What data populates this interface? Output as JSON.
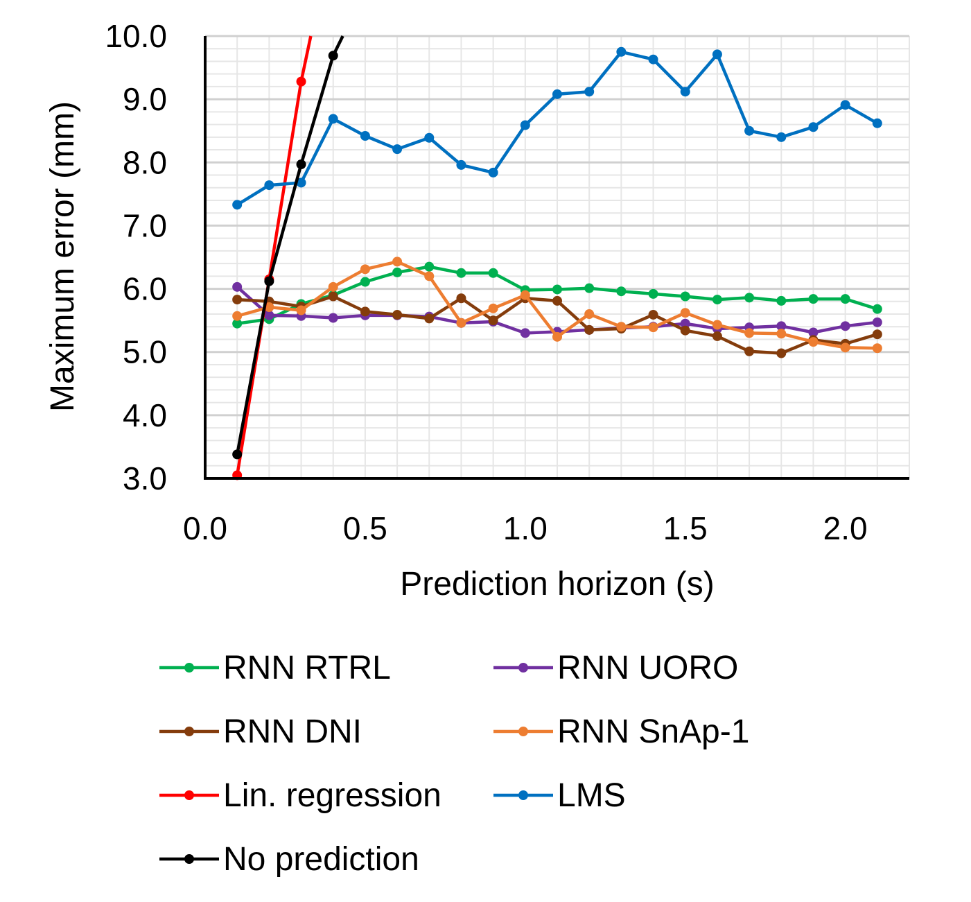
{
  "chart_data": {
    "type": "line",
    "title": "",
    "xlabel": "Prediction horizon (s)",
    "ylabel": "Maximum error (mm)",
    "xlim": [
      0.0,
      2.2
    ],
    "ylim": [
      3.0,
      10.0
    ],
    "xticks": [
      "0.0",
      "0.5",
      "1.0",
      "1.5",
      "2.0"
    ],
    "xtick_values": [
      0.0,
      0.5,
      1.0,
      1.5,
      2.0
    ],
    "yticks": [
      "3.0",
      "4.0",
      "5.0",
      "6.0",
      "7.0",
      "8.0",
      "9.0",
      "10.0"
    ],
    "ytick_values": [
      3,
      4,
      5,
      6,
      7,
      8,
      9,
      10
    ],
    "grid": true,
    "legend_position": "bottom",
    "series": [
      {
        "name": "RNN RTRL",
        "color": "#00b050",
        "x": [
          0.1,
          0.2,
          0.3,
          0.4,
          0.5,
          0.6,
          0.7,
          0.8,
          0.9,
          1.0,
          1.1,
          1.2,
          1.3,
          1.4,
          1.5,
          1.6,
          1.7,
          1.8,
          1.9,
          2.0,
          2.1
        ],
        "values": [
          5.45,
          5.52,
          5.76,
          5.9,
          6.11,
          6.26,
          6.35,
          6.25,
          6.25,
          5.98,
          5.99,
          6.01,
          5.96,
          5.92,
          5.88,
          5.83,
          5.86,
          5.81,
          5.84,
          5.84,
          5.68
        ]
      },
      {
        "name": "RNN UORO",
        "color": "#7030a0",
        "x": [
          0.1,
          0.2,
          0.3,
          0.4,
          0.5,
          0.6,
          0.7,
          0.8,
          0.9,
          1.0,
          1.1,
          1.2,
          1.3,
          1.4,
          1.5,
          1.6,
          1.7,
          1.8,
          1.9,
          2.0,
          2.1
        ],
        "values": [
          6.03,
          5.58,
          5.57,
          5.54,
          5.58,
          5.58,
          5.56,
          5.46,
          5.48,
          5.3,
          5.32,
          5.35,
          5.38,
          5.4,
          5.45,
          5.37,
          5.39,
          5.41,
          5.31,
          5.41,
          5.47
        ]
      },
      {
        "name": "RNN DNI",
        "color": "#843c0c",
        "x": [
          0.1,
          0.2,
          0.3,
          0.4,
          0.5,
          0.6,
          0.7,
          0.8,
          0.9,
          1.0,
          1.1,
          1.2,
          1.3,
          1.4,
          1.5,
          1.6,
          1.7,
          1.8,
          1.9,
          2.0,
          2.1
        ],
        "values": [
          5.83,
          5.8,
          5.72,
          5.88,
          5.64,
          5.59,
          5.53,
          5.85,
          5.5,
          5.85,
          5.81,
          5.35,
          5.37,
          5.59,
          5.34,
          5.25,
          5.01,
          4.98,
          5.19,
          5.13,
          5.28
        ]
      },
      {
        "name": "RNN SnAp-1",
        "color": "#ed7d31",
        "x": [
          0.1,
          0.2,
          0.3,
          0.4,
          0.5,
          0.6,
          0.7,
          0.8,
          0.9,
          1.0,
          1.1,
          1.2,
          1.3,
          1.4,
          1.5,
          1.6,
          1.7,
          1.8,
          1.9,
          2.0,
          2.1
        ],
        "values": [
          5.57,
          5.71,
          5.66,
          6.03,
          6.31,
          6.43,
          6.2,
          5.46,
          5.69,
          5.9,
          5.24,
          5.6,
          5.4,
          5.39,
          5.62,
          5.43,
          5.3,
          5.29,
          5.16,
          5.07,
          5.06
        ]
      },
      {
        "name": "Lin. regression",
        "color": "#ff0000",
        "x": [
          0.1,
          0.2,
          0.3,
          0.33
        ],
        "values": [
          3.05,
          6.15,
          9.28,
          10.0
        ]
      },
      {
        "name": "LMS",
        "color": "#0070c0",
        "x": [
          0.1,
          0.2,
          0.3,
          0.4,
          0.5,
          0.6,
          0.7,
          0.8,
          0.9,
          1.0,
          1.1,
          1.2,
          1.3,
          1.4,
          1.5,
          1.6,
          1.7,
          1.8,
          1.9,
          2.0,
          2.1
        ],
        "values": [
          7.33,
          7.64,
          7.68,
          8.69,
          8.42,
          8.21,
          8.39,
          7.96,
          7.84,
          8.59,
          9.08,
          9.12,
          9.75,
          9.63,
          9.12,
          9.71,
          8.5,
          8.4,
          8.56,
          8.91,
          8.62
        ]
      },
      {
        "name": "No prediction",
        "color": "#000000",
        "x": [
          0.1,
          0.2,
          0.3,
          0.4,
          0.43
        ],
        "values": [
          3.38,
          6.12,
          7.97,
          9.69,
          10.0
        ]
      }
    ]
  }
}
